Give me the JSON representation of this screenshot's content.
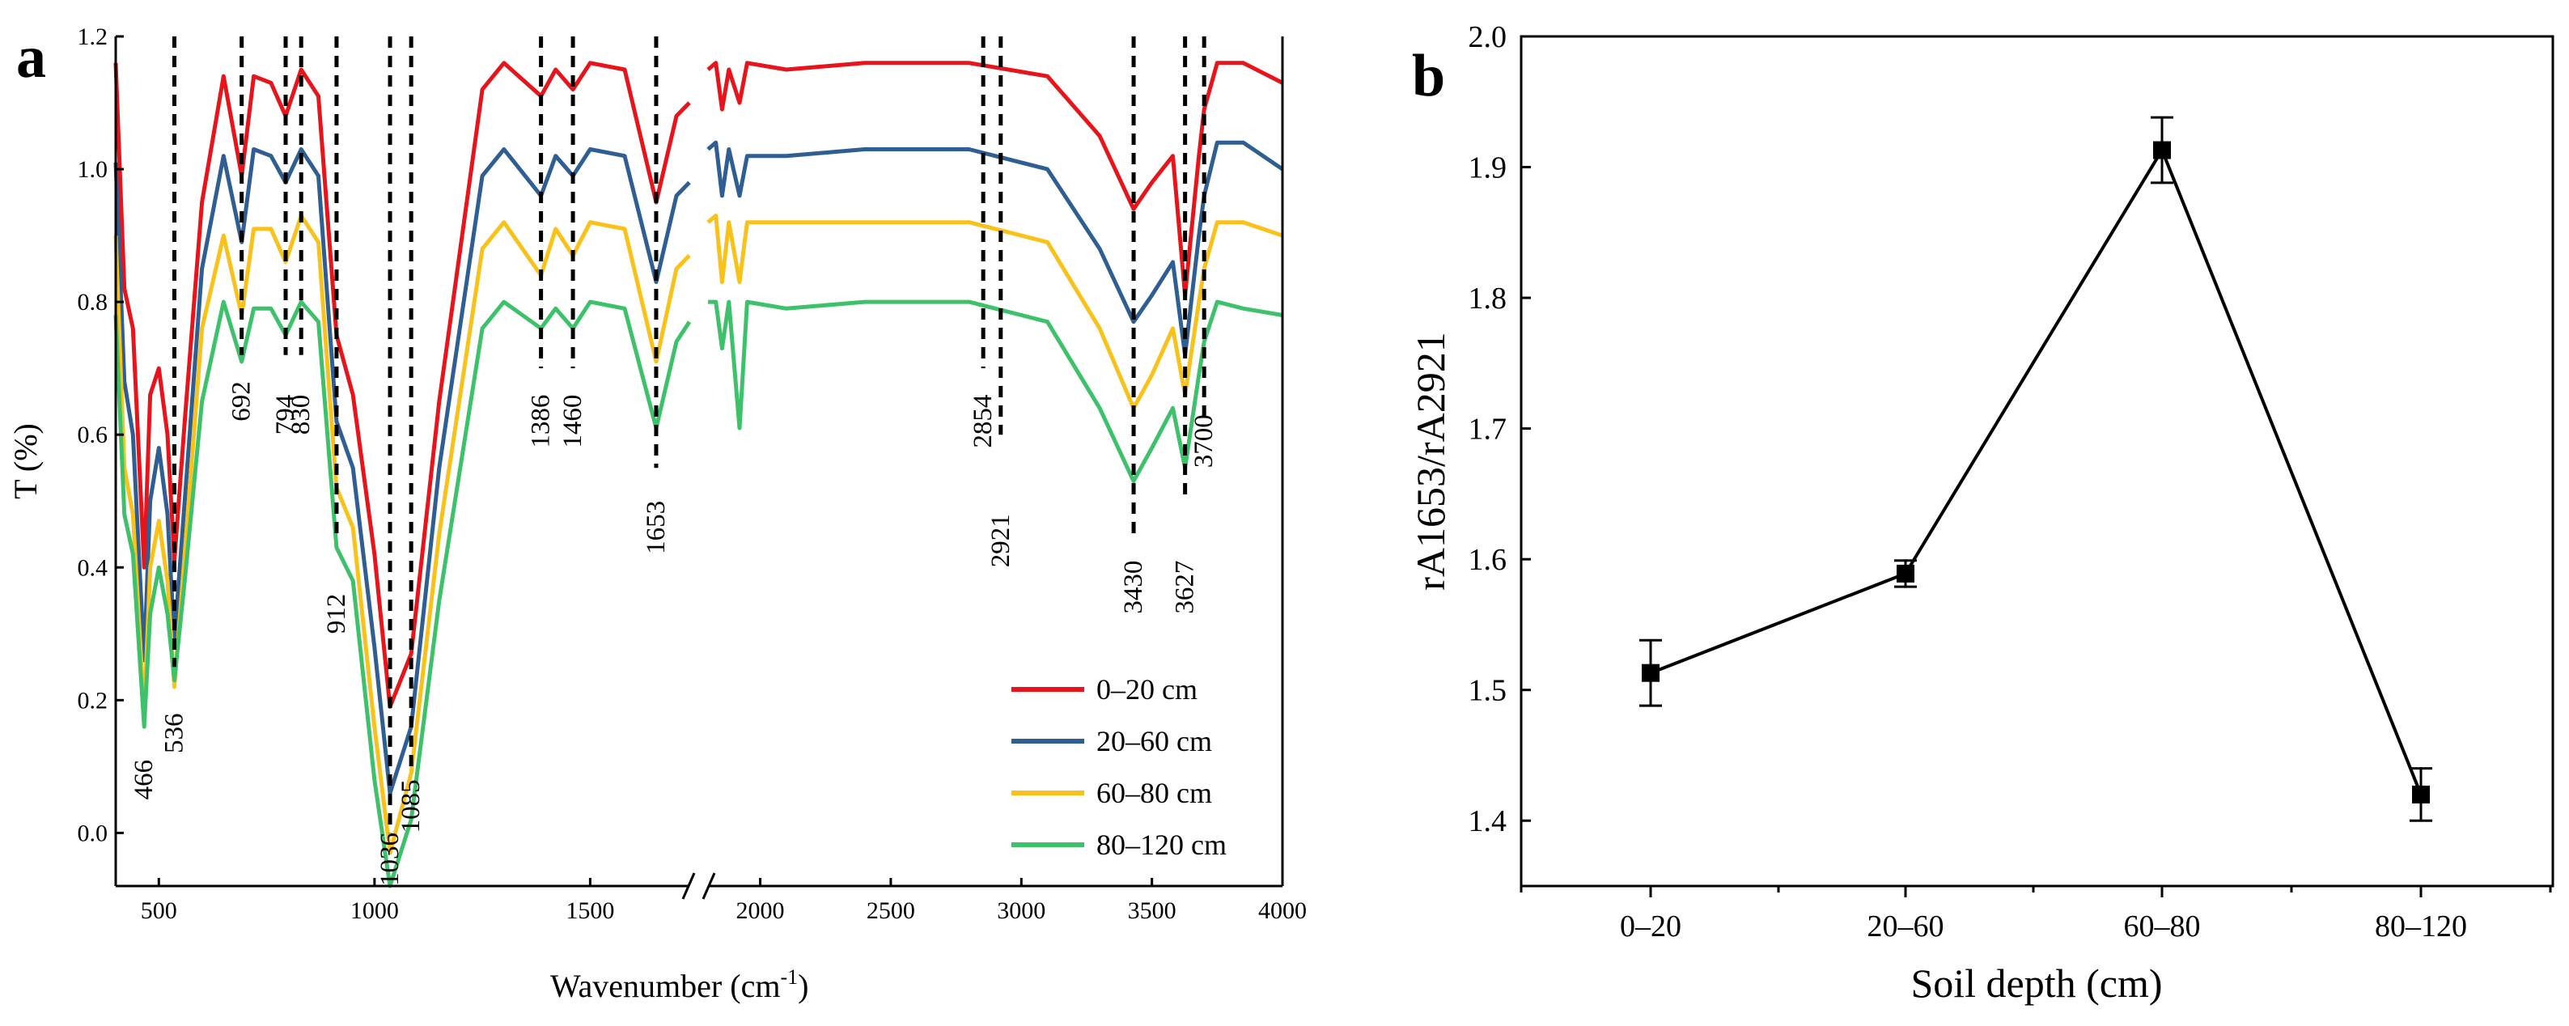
{
  "panels": {
    "a": "a",
    "b": "b"
  },
  "chart_data": [
    {
      "panel": "a",
      "type": "line",
      "xlabel": "Wavenumber (cm",
      "xlabel_sup": "-1",
      "xlabel_end": ")",
      "ylabel": "T (%)",
      "x_break": [
        1730,
        1800
      ],
      "xlim": [
        400,
        4000
      ],
      "ylim": [
        -0.08,
        1.2
      ],
      "yticks": [
        0.0,
        0.2,
        0.4,
        0.6,
        0.8,
        1.0,
        1.2
      ],
      "ytick_labels": [
        "0.0",
        "0.2",
        "0.4",
        "0.6",
        "0.8",
        "1.0",
        "1.2"
      ],
      "xticks": [
        500,
        1000,
        1500,
        2000,
        2500,
        3000,
        3500,
        4000
      ],
      "xtick_labels": [
        "500",
        "1000",
        "1500",
        "2000",
        "2500",
        "3000",
        "3500",
        "4000"
      ],
      "peaks": [
        {
          "x": 466,
          "label": "466"
        },
        {
          "x": 536,
          "label": "536"
        },
        {
          "x": 692,
          "label": "692"
        },
        {
          "x": 794,
          "label": "794"
        },
        {
          "x": 830,
          "label": "830"
        },
        {
          "x": 912,
          "label": "912"
        },
        {
          "x": 1036,
          "label": "1036"
        },
        {
          "x": 1085,
          "label": "1085"
        },
        {
          "x": 1386,
          "label": "1386"
        },
        {
          "x": 1460,
          "label": "1460"
        },
        {
          "x": 1653,
          "label": "1653"
        },
        {
          "x": 2854,
          "label": "2854"
        },
        {
          "x": 2921,
          "label": "2921"
        },
        {
          "x": 3430,
          "label": "3430"
        },
        {
          "x": 3627,
          "label": "3627"
        },
        {
          "x": 3700,
          "label": "3700"
        }
      ],
      "series": [
        {
          "name": "0–20 cm",
          "color": "#e8141b",
          "x": [
            400,
            420,
            440,
            466,
            480,
            500,
            520,
            536,
            560,
            600,
            650,
            692,
            720,
            760,
            794,
            830,
            870,
            912,
            950,
            1000,
            1036,
            1085,
            1150,
            1250,
            1300,
            1386,
            1420,
            1460,
            1500,
            1580,
            1653,
            1700,
            1730,
            1800,
            1830,
            1854,
            1880,
            1921,
            1950,
            2100,
            2400,
            2800,
            3100,
            3300,
            3430,
            3500,
            3580,
            3627,
            3680,
            3700,
            3750,
            3850,
            4000
          ],
          "y": [
            1.16,
            0.82,
            0.76,
            0.4,
            0.66,
            0.7,
            0.6,
            0.41,
            0.62,
            0.95,
            1.14,
            0.99,
            1.14,
            1.13,
            1.08,
            1.15,
            1.11,
            0.75,
            0.66,
            0.42,
            0.19,
            0.27,
            0.65,
            1.12,
            1.16,
            1.11,
            1.15,
            1.12,
            1.16,
            1.15,
            0.95,
            1.08,
            1.1,
            1.15,
            1.16,
            1.09,
            1.15,
            1.1,
            1.16,
            1.15,
            1.16,
            1.16,
            1.14,
            1.05,
            0.94,
            0.98,
            1.02,
            0.81,
            1.02,
            1.09,
            1.16,
            1.16,
            1.13
          ]
        },
        {
          "name": "20–60 cm",
          "color": "#2f5e93",
          "x": [
            400,
            420,
            440,
            466,
            480,
            500,
            520,
            536,
            560,
            600,
            650,
            692,
            720,
            760,
            794,
            830,
            870,
            912,
            950,
            1000,
            1036,
            1085,
            1150,
            1250,
            1300,
            1386,
            1420,
            1460,
            1500,
            1580,
            1653,
            1700,
            1730,
            1800,
            1830,
            1854,
            1880,
            1921,
            1950,
            2100,
            2400,
            2800,
            3100,
            3300,
            3430,
            3500,
            3580,
            3627,
            3680,
            3700,
            3750,
            3850,
            4000
          ],
          "y": [
            1.01,
            0.68,
            0.6,
            0.26,
            0.5,
            0.58,
            0.48,
            0.29,
            0.5,
            0.85,
            1.02,
            0.89,
            1.03,
            1.02,
            0.98,
            1.03,
            0.99,
            0.62,
            0.55,
            0.28,
            0.06,
            0.16,
            0.55,
            0.99,
            1.03,
            0.96,
            1.02,
            0.99,
            1.03,
            1.02,
            0.83,
            0.96,
            0.98,
            1.03,
            1.04,
            0.96,
            1.03,
            0.96,
            1.02,
            1.02,
            1.03,
            1.03,
            1.0,
            0.88,
            0.77,
            0.81,
            0.86,
            0.72,
            0.9,
            0.96,
            1.04,
            1.04,
            1.0
          ]
        },
        {
          "name": "60–80 cm",
          "color": "#f8c21b",
          "x": [
            400,
            420,
            440,
            466,
            480,
            500,
            520,
            536,
            560,
            600,
            650,
            692,
            720,
            760,
            794,
            830,
            870,
            912,
            950,
            1000,
            1036,
            1085,
            1150,
            1250,
            1300,
            1386,
            1420,
            1460,
            1500,
            1580,
            1653,
            1700,
            1730,
            1800,
            1830,
            1854,
            1880,
            1921,
            1950,
            2100,
            2400,
            2800,
            3100,
            3300,
            3430,
            3500,
            3580,
            3627,
            3680,
            3700,
            3750,
            3850,
            4000
          ],
          "y": [
            0.9,
            0.55,
            0.48,
            0.18,
            0.4,
            0.47,
            0.38,
            0.22,
            0.42,
            0.76,
            0.9,
            0.78,
            0.91,
            0.91,
            0.86,
            0.93,
            0.89,
            0.52,
            0.46,
            0.16,
            -0.03,
            0.09,
            0.45,
            0.88,
            0.92,
            0.84,
            0.91,
            0.87,
            0.92,
            0.91,
            0.71,
            0.85,
            0.87,
            0.92,
            0.93,
            0.83,
            0.92,
            0.83,
            0.92,
            0.92,
            0.92,
            0.92,
            0.89,
            0.76,
            0.64,
            0.69,
            0.76,
            0.66,
            0.8,
            0.85,
            0.92,
            0.92,
            0.9
          ]
        },
        {
          "name": "80–120 cm",
          "color": "#3ec16b",
          "x": [
            400,
            420,
            440,
            466,
            480,
            500,
            520,
            536,
            560,
            600,
            650,
            692,
            720,
            760,
            794,
            830,
            870,
            912,
            950,
            1000,
            1036,
            1085,
            1150,
            1250,
            1300,
            1386,
            1420,
            1460,
            1500,
            1580,
            1653,
            1700,
            1730,
            1800,
            1830,
            1854,
            1880,
            1921,
            1950,
            2100,
            2400,
            2800,
            3100,
            3300,
            3430,
            3500,
            3580,
            3627,
            3680,
            3700,
            3750,
            3850,
            4000
          ],
          "y": [
            0.78,
            0.48,
            0.42,
            0.16,
            0.33,
            0.4,
            0.33,
            0.23,
            0.38,
            0.65,
            0.8,
            0.71,
            0.79,
            0.79,
            0.75,
            0.8,
            0.77,
            0.43,
            0.38,
            0.08,
            -0.08,
            0.02,
            0.35,
            0.76,
            0.8,
            0.76,
            0.79,
            0.76,
            0.8,
            0.79,
            0.61,
            0.74,
            0.77,
            0.8,
            0.8,
            0.73,
            0.8,
            0.61,
            0.8,
            0.79,
            0.8,
            0.8,
            0.77,
            0.64,
            0.53,
            0.58,
            0.64,
            0.55,
            0.69,
            0.74,
            0.8,
            0.79,
            0.78
          ]
        }
      ],
      "legend": "bottom-right"
    },
    {
      "panel": "b",
      "type": "line",
      "xlabel": "Soil depth (cm)",
      "ylabel": "rA1653/rA2921",
      "categories": [
        "0–20",
        "20–60",
        "60–80",
        "80–120"
      ],
      "values": [
        1.513,
        1.589,
        1.913,
        1.42
      ],
      "errors": [
        0.025,
        0.01,
        0.025,
        0.02
      ],
      "ylim": [
        1.35,
        2.0
      ],
      "yticks": [
        1.4,
        1.5,
        1.6,
        1.7,
        1.8,
        1.9,
        2.0
      ],
      "ytick_labels": [
        "1.4",
        "1.5",
        "1.6",
        "1.7",
        "1.8",
        "1.9",
        "2.0"
      ],
      "color": "#000000"
    }
  ]
}
